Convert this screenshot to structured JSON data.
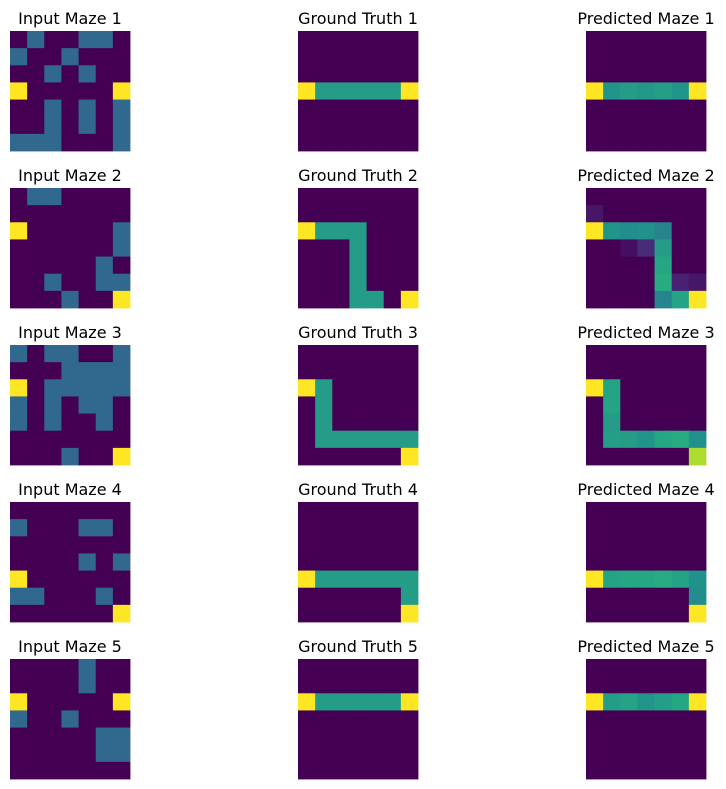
{
  "palette": {
    "0": "#440154",
    "1": "#31688e",
    "2": "#fde725",
    "3": "#35b779",
    "wall": "#31688e",
    "open": "#440154",
    "endpoint": "#fde725",
    "path": "#35b779"
  },
  "chart_data": {
    "type": "heatmap",
    "colormap": "viridis",
    "axes_visible": false,
    "grid_size": [
      7,
      7
    ],
    "rows": [
      {
        "input": {
          "title": "Input Maze 1",
          "matrix": [
            [
              0,
              1,
              0,
              0,
              1,
              1,
              0
            ],
            [
              1,
              0,
              0,
              1,
              0,
              0,
              0
            ],
            [
              0,
              0,
              1,
              0,
              1,
              0,
              0
            ],
            [
              2,
              0,
              0,
              0,
              0,
              0,
              2
            ],
            [
              0,
              0,
              1,
              0,
              1,
              0,
              1
            ],
            [
              0,
              0,
              1,
              0,
              1,
              0,
              1
            ],
            [
              1,
              1,
              1,
              0,
              0,
              0,
              1
            ]
          ]
        },
        "truth": {
          "title": "Ground Truth 1",
          "matrix": [
            [
              0,
              0,
              0,
              0,
              0,
              0,
              0
            ],
            [
              0,
              0,
              0,
              0,
              0,
              0,
              0
            ],
            [
              0,
              0,
              0,
              0,
              0,
              0,
              0
            ],
            [
              1,
              0.55,
              0.55,
              0.55,
              0.55,
              0.55,
              1
            ],
            [
              0,
              0,
              0,
              0,
              0,
              0,
              0
            ],
            [
              0,
              0,
              0,
              0,
              0,
              0,
              0
            ],
            [
              0,
              0,
              0,
              0,
              0,
              0,
              0
            ]
          ]
        },
        "pred": {
          "title": "Predicted Maze 1",
          "matrix": [
            [
              0,
              0,
              0,
              0,
              0,
              0,
              0
            ],
            [
              0,
              0,
              0,
              0,
              0,
              0,
              0
            ],
            [
              0,
              0,
              0,
              0,
              0,
              0,
              0
            ],
            [
              1,
              0.52,
              0.55,
              0.53,
              0.56,
              0.52,
              1
            ],
            [
              0,
              0,
              0,
              0,
              0,
              0,
              0
            ],
            [
              0,
              0,
              0,
              0,
              0,
              0,
              0
            ],
            [
              0,
              0,
              0,
              0,
              0,
              0,
              0
            ]
          ]
        }
      },
      {
        "input": {
          "title": "Input Maze 2",
          "matrix": [
            [
              0,
              1,
              1,
              0,
              0,
              0,
              0
            ],
            [
              0,
              0,
              0,
              0,
              0,
              0,
              0
            ],
            [
              2,
              0,
              0,
              0,
              0,
              0,
              1
            ],
            [
              0,
              0,
              0,
              0,
              0,
              0,
              1
            ],
            [
              0,
              0,
              0,
              0,
              0,
              1,
              0
            ],
            [
              0,
              0,
              1,
              0,
              0,
              1,
              1
            ],
            [
              0,
              0,
              0,
              1,
              0,
              0,
              2
            ]
          ]
        },
        "truth": {
          "title": "Ground Truth 2",
          "matrix": [
            [
              0,
              0,
              0,
              0,
              0,
              0,
              0
            ],
            [
              0,
              0,
              0,
              0,
              0,
              0,
              0
            ],
            [
              1,
              0.55,
              0.55,
              0.55,
              0,
              0,
              0
            ],
            [
              0,
              0,
              0,
              0.55,
              0,
              0,
              0
            ],
            [
              0,
              0,
              0,
              0.55,
              0,
              0,
              0
            ],
            [
              0,
              0,
              0,
              0.55,
              0,
              0,
              0
            ],
            [
              0,
              0,
              0,
              0.55,
              0.55,
              0,
              1
            ]
          ]
        },
        "pred": {
          "title": "Predicted Maze 2",
          "matrix": [
            [
              0,
              0,
              0,
              0,
              0,
              0,
              0
            ],
            [
              0.08,
              0,
              0,
              0,
              0,
              0,
              0
            ],
            [
              1,
              0.52,
              0.48,
              0.5,
              0.45,
              0,
              0
            ],
            [
              0,
              0,
              0.05,
              0.15,
              0.55,
              0,
              0
            ],
            [
              0,
              0,
              0,
              0,
              0.6,
              0,
              0
            ],
            [
              0,
              0,
              0,
              0,
              0.62,
              0.12,
              0.08
            ],
            [
              0,
              0,
              0,
              0,
              0.45,
              0.58,
              1
            ]
          ]
        }
      },
      {
        "input": {
          "title": "Input Maze 3",
          "matrix": [
            [
              1,
              0,
              1,
              1,
              0,
              0,
              1
            ],
            [
              0,
              0,
              0,
              1,
              1,
              1,
              1
            ],
            [
              2,
              0,
              1,
              1,
              1,
              1,
              1
            ],
            [
              1,
              0,
              1,
              0,
              1,
              1,
              0
            ],
            [
              1,
              0,
              1,
              0,
              0,
              1,
              0
            ],
            [
              0,
              0,
              0,
              0,
              0,
              0,
              0
            ],
            [
              0,
              0,
              0,
              1,
              0,
              0,
              2
            ]
          ]
        },
        "truth": {
          "title": "Ground Truth 3",
          "matrix": [
            [
              0,
              0,
              0,
              0,
              0,
              0,
              0
            ],
            [
              0,
              0,
              0,
              0,
              0,
              0,
              0
            ],
            [
              1,
              0.55,
              0,
              0,
              0,
              0,
              0
            ],
            [
              0,
              0.55,
              0,
              0,
              0,
              0,
              0
            ],
            [
              0,
              0.55,
              0,
              0,
              0,
              0,
              0
            ],
            [
              0,
              0.55,
              0.55,
              0.55,
              0.55,
              0.55,
              0.55
            ],
            [
              0,
              0,
              0,
              0,
              0,
              0,
              1
            ]
          ]
        },
        "pred": {
          "title": "Predicted Maze 3",
          "matrix": [
            [
              0,
              0,
              0,
              0,
              0,
              0,
              0
            ],
            [
              0,
              0,
              0,
              0,
              0,
              0,
              0
            ],
            [
              1,
              0.58,
              0,
              0,
              0,
              0,
              0
            ],
            [
              0,
              0.58,
              0,
              0,
              0,
              0,
              0
            ],
            [
              0,
              0.55,
              0,
              0,
              0,
              0,
              0
            ],
            [
              0,
              0.56,
              0.55,
              0.52,
              0.6,
              0.62,
              0.5
            ],
            [
              0,
              0,
              0,
              0,
              0,
              0,
              0.88
            ]
          ]
        }
      },
      {
        "input": {
          "title": "Input Maze 4",
          "matrix": [
            [
              0,
              0,
              0,
              0,
              0,
              0,
              0
            ],
            [
              1,
              0,
              0,
              0,
              1,
              1,
              0
            ],
            [
              0,
              0,
              0,
              0,
              0,
              0,
              0
            ],
            [
              0,
              0,
              0,
              0,
              1,
              0,
              1
            ],
            [
              2,
              0,
              0,
              0,
              0,
              0,
              0
            ],
            [
              1,
              1,
              0,
              0,
              0,
              1,
              0
            ],
            [
              0,
              0,
              0,
              0,
              0,
              0,
              2
            ]
          ]
        },
        "truth": {
          "title": "Ground Truth 4",
          "matrix": [
            [
              0,
              0,
              0,
              0,
              0,
              0,
              0
            ],
            [
              0,
              0,
              0,
              0,
              0,
              0,
              0
            ],
            [
              0,
              0,
              0,
              0,
              0,
              0,
              0
            ],
            [
              0,
              0,
              0,
              0,
              0,
              0,
              0
            ],
            [
              1,
              0.55,
              0.55,
              0.55,
              0.55,
              0.55,
              0.55
            ],
            [
              0,
              0,
              0,
              0,
              0,
              0,
              0.55
            ],
            [
              0,
              0,
              0,
              0,
              0,
              0,
              1
            ]
          ]
        },
        "pred": {
          "title": "Predicted Maze 4",
          "matrix": [
            [
              0,
              0,
              0,
              0,
              0,
              0,
              0
            ],
            [
              0,
              0,
              0,
              0,
              0,
              0,
              0
            ],
            [
              0,
              0,
              0,
              0,
              0,
              0,
              0
            ],
            [
              0,
              0,
              0,
              0,
              0,
              0,
              0
            ],
            [
              1,
              0.58,
              0.6,
              0.6,
              0.62,
              0.58,
              0.5
            ],
            [
              0,
              0,
              0,
              0,
              0,
              0,
              0.48
            ],
            [
              0,
              0,
              0,
              0,
              0,
              0,
              1
            ]
          ]
        }
      },
      {
        "input": {
          "title": "Input Maze 5",
          "matrix": [
            [
              0,
              0,
              0,
              0,
              1,
              0,
              0
            ],
            [
              0,
              0,
              0,
              0,
              1,
              0,
              0
            ],
            [
              2,
              0,
              0,
              0,
              0,
              0,
              2
            ],
            [
              1,
              0,
              0,
              1,
              0,
              0,
              0
            ],
            [
              0,
              0,
              0,
              0,
              0,
              1,
              1
            ],
            [
              0,
              0,
              0,
              0,
              0,
              1,
              1
            ],
            [
              0,
              0,
              0,
              0,
              0,
              0,
              0
            ]
          ]
        },
        "truth": {
          "title": "Ground Truth 5",
          "matrix": [
            [
              0,
              0,
              0,
              0,
              0,
              0,
              0
            ],
            [
              0,
              0,
              0,
              0,
              0,
              0,
              0
            ],
            [
              1,
              0.55,
              0.55,
              0.55,
              0.55,
              0.55,
              1
            ],
            [
              0,
              0,
              0,
              0,
              0,
              0,
              0
            ],
            [
              0,
              0,
              0,
              0,
              0,
              0,
              0
            ],
            [
              0,
              0,
              0,
              0,
              0,
              0,
              0
            ],
            [
              0,
              0,
              0,
              0,
              0,
              0,
              0
            ]
          ]
        },
        "pred": {
          "title": "Predicted Maze 5",
          "matrix": [
            [
              0,
              0,
              0,
              0,
              0,
              0,
              0
            ],
            [
              0,
              0,
              0,
              0,
              0,
              0,
              0
            ],
            [
              1,
              0.55,
              0.58,
              0.52,
              0.56,
              0.6,
              1
            ],
            [
              0,
              0,
              0,
              0,
              0,
              0,
              0
            ],
            [
              0,
              0,
              0,
              0,
              0,
              0,
              0
            ],
            [
              0,
              0,
              0,
              0,
              0,
              0,
              0
            ],
            [
              0,
              0,
              0,
              0,
              0,
              0,
              0
            ]
          ]
        }
      }
    ]
  }
}
